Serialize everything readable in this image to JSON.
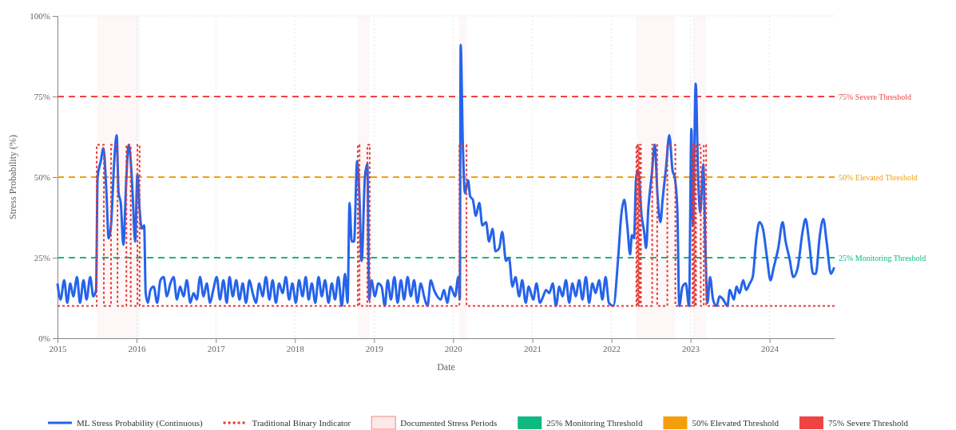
{
  "chart_data": {
    "type": "line",
    "xlabel": "Date",
    "ylabel": "Stress Probability (%)",
    "xlim": [
      "2015",
      "2024-10-27"
    ],
    "xticks": [
      "2015",
      "2016",
      "2017",
      "2018",
      "2019",
      "2020",
      "2021",
      "2022",
      "2023",
      "2024"
    ],
    "ylim": [
      0,
      100
    ],
    "yticks": [
      {
        "value": 0,
        "label": "0%"
      },
      {
        "value": 25,
        "label": "25%"
      },
      {
        "value": 50,
        "label": "50%"
      },
      {
        "value": 75,
        "label": "75%"
      },
      {
        "value": 100,
        "label": "100%"
      }
    ],
    "grid": true,
    "legend": "bottom",
    "series": [
      {
        "name": "ML Stress Probability (Continuous)",
        "color": "#2563eb",
        "line_style": "solid",
        "x": [
          "2015-01-01",
          "2015-01-15",
          "2015-02-01",
          "2015-02-15",
          "2015-03-01",
          "2015-03-15",
          "2015-04-01",
          "2015-04-15",
          "2015-05-01",
          "2015-05-15",
          "2015-06-01",
          "2015-06-15",
          "2015-06-28",
          "2015-07-05",
          "2015-07-20",
          "2015-08-01",
          "2015-08-15",
          "2015-08-25",
          "2015-09-05",
          "2015-09-20",
          "2015-10-01",
          "2015-10-10",
          "2015-10-20",
          "2015-11-01",
          "2015-11-15",
          "2015-11-25",
          "2015-12-05",
          "2015-12-15",
          "2015-12-25",
          "2016-01-05",
          "2016-01-15",
          "2016-01-25",
          "2016-02-05",
          "2016-02-12",
          "2016-02-22",
          "2016-03-05",
          "2016-03-20",
          "2016-04-05",
          "2016-04-20",
          "2016-05-05",
          "2016-05-20",
          "2016-06-05",
          "2016-06-20",
          "2016-07-05",
          "2016-07-20",
          "2016-08-05",
          "2016-08-20",
          "2016-09-05",
          "2016-09-20",
          "2016-10-05",
          "2016-10-20",
          "2016-11-05",
          "2016-11-20",
          "2016-12-05",
          "2016-12-20",
          "2017-01-05",
          "2017-01-20",
          "2017-02-05",
          "2017-02-20",
          "2017-03-05",
          "2017-03-20",
          "2017-04-05",
          "2017-04-20",
          "2017-05-05",
          "2017-05-20",
          "2017-06-05",
          "2017-06-20",
          "2017-07-05",
          "2017-07-20",
          "2017-08-05",
          "2017-08-20",
          "2017-09-05",
          "2017-09-20",
          "2017-10-05",
          "2017-10-20",
          "2017-11-05",
          "2017-11-20",
          "2017-12-05",
          "2017-12-20",
          "2018-01-05",
          "2018-01-20",
          "2018-02-05",
          "2018-02-20",
          "2018-03-05",
          "2018-03-20",
          "2018-04-05",
          "2018-04-20",
          "2018-05-05",
          "2018-05-20",
          "2018-06-05",
          "2018-06-20",
          "2018-07-05",
          "2018-07-20",
          "2018-08-05",
          "2018-08-20",
          "2018-09-01",
          "2018-09-10",
          "2018-09-20",
          "2018-10-01",
          "2018-10-15",
          "2018-10-25",
          "2018-11-05",
          "2018-11-20",
          "2018-12-01",
          "2018-12-10",
          "2018-12-20",
          "2019-01-05",
          "2019-01-20",
          "2019-02-05",
          "2019-02-20",
          "2019-03-05",
          "2019-03-20",
          "2019-04-05",
          "2019-04-20",
          "2019-05-05",
          "2019-05-20",
          "2019-06-05",
          "2019-06-20",
          "2019-07-05",
          "2019-07-20",
          "2019-08-05",
          "2019-08-20",
          "2019-09-05",
          "2019-09-20",
          "2019-10-05",
          "2019-10-20",
          "2019-11-05",
          "2019-11-20",
          "2019-12-05",
          "2019-12-20",
          "2020-01-10",
          "2020-01-25",
          "2020-02-01",
          "2020-02-05",
          "2020-02-15",
          "2020-02-25",
          "2020-03-10",
          "2020-03-20",
          "2020-04-01",
          "2020-04-15",
          "2020-05-01",
          "2020-05-15",
          "2020-06-01",
          "2020-06-15",
          "2020-07-01",
          "2020-07-15",
          "2020-08-01",
          "2020-08-15",
          "2020-09-01",
          "2020-09-15",
          "2020-10-01",
          "2020-10-15",
          "2020-11-01",
          "2020-11-15",
          "2020-12-01",
          "2020-12-15",
          "2021-01-05",
          "2021-01-20",
          "2021-02-05",
          "2021-02-20",
          "2021-03-05",
          "2021-03-20",
          "2021-04-05",
          "2021-04-20",
          "2021-05-05",
          "2021-05-20",
          "2021-06-05",
          "2021-06-20",
          "2021-07-05",
          "2021-07-20",
          "2021-08-05",
          "2021-08-20",
          "2021-09-05",
          "2021-09-20",
          "2021-10-05",
          "2021-10-20",
          "2021-11-05",
          "2021-11-20",
          "2021-12-05",
          "2021-12-20",
          "2022-01-10",
          "2022-02-01",
          "2022-02-15",
          "2022-03-01",
          "2022-03-15",
          "2022-03-28",
          "2022-04-05",
          "2022-04-15",
          "2022-04-25",
          "2022-05-05",
          "2022-05-20",
          "2022-06-01",
          "2022-06-10",
          "2022-06-20",
          "2022-07-05",
          "2022-07-20",
          "2022-08-01",
          "2022-08-15",
          "2022-08-25",
          "2022-09-10",
          "2022-09-25",
          "2022-10-10",
          "2022-10-20",
          "2022-11-01",
          "2022-11-10",
          "2022-11-25",
          "2022-12-10",
          "2022-12-25",
          "2023-01-05",
          "2023-01-12",
          "2023-01-25",
          "2023-02-05",
          "2023-02-15",
          "2023-03-01",
          "2023-03-10",
          "2023-03-20",
          "2023-04-01",
          "2023-04-15",
          "2023-05-01",
          "2023-05-15",
          "2023-06-01",
          "2023-06-20",
          "2023-07-01",
          "2023-07-20",
          "2023-08-01",
          "2023-08-15",
          "2023-09-01",
          "2023-09-15",
          "2023-10-01",
          "2023-10-15",
          "2023-11-01",
          "2023-11-15",
          "2023-12-01",
          "2023-12-20",
          "2024-01-05",
          "2024-01-20",
          "2024-02-10",
          "2024-03-01",
          "2024-03-15",
          "2024-04-01",
          "2024-04-20",
          "2024-05-10",
          "2024-06-01",
          "2024-06-15",
          "2024-07-01",
          "2024-07-20",
          "2024-08-01",
          "2024-08-20",
          "2024-09-05",
          "2024-09-20",
          "2024-10-10",
          "2024-10-25"
        ],
        "values": [
          17,
          12,
          18,
          11,
          17,
          13,
          19,
          11,
          18,
          12,
          19,
          13,
          15,
          50,
          55,
          59,
          45,
          31,
          35,
          55,
          63,
          45,
          42,
          29,
          50,
          60,
          55,
          43,
          30,
          51,
          40,
          34,
          35,
          14,
          11,
          15,
          16,
          11,
          18,
          19,
          13,
          17,
          19,
          12,
          16,
          13,
          18,
          11,
          14,
          12,
          19,
          13,
          17,
          11,
          15,
          19,
          12,
          18,
          11,
          19,
          13,
          18,
          12,
          17,
          11,
          18,
          14,
          11,
          17,
          13,
          19,
          12,
          18,
          11,
          17,
          14,
          19,
          12,
          17,
          11,
          18,
          13,
          19,
          12,
          17,
          11,
          19,
          13,
          18,
          11,
          17,
          12,
          19,
          10,
          20,
          11,
          42,
          30,
          30,
          55,
          45,
          24,
          50,
          54,
          12,
          18,
          13,
          17,
          16,
          10,
          18,
          12,
          19,
          11,
          18,
          12,
          19,
          13,
          18,
          11,
          17,
          13,
          10,
          18,
          15,
          13,
          12,
          15,
          11,
          16,
          13,
          19,
          12,
          91,
          60,
          45,
          49,
          44,
          43,
          38,
          42,
          35,
          36,
          30,
          34,
          27,
          28,
          33,
          24,
          25,
          16,
          19,
          13,
          18,
          11,
          16,
          12,
          17,
          11,
          13,
          15,
          14,
          17,
          10,
          16,
          13,
          18,
          11,
          17,
          13,
          18,
          12,
          19,
          11,
          17,
          14,
          18,
          12,
          19,
          11,
          10,
          25,
          38,
          43,
          35,
          26,
          32,
          31,
          50,
          52,
          38,
          33,
          28,
          40,
          50,
          60,
          45,
          36,
          43,
          53,
          63,
          52,
          50,
          40,
          10,
          16,
          17,
          10,
          65,
          35,
          79,
          50,
          39,
          54,
          30,
          11,
          19,
          12,
          10,
          13,
          12,
          10,
          15,
          12,
          16,
          14,
          18,
          15,
          17,
          19,
          31,
          36,
          34,
          25,
          18,
          22,
          28,
          36,
          30,
          25,
          19,
          22,
          33,
          37,
          30,
          20,
          20,
          32,
          37,
          30,
          20,
          22
        ]
      },
      {
        "name": "Traditional Binary Indicator",
        "type": "step",
        "color": "#e53935",
        "line_style": "dotted",
        "x": [
          "2015-01-01",
          "2015-07-01",
          "2015-08-03",
          "2015-09-05",
          "2015-10-05",
          "2015-11-15",
          "2015-12-05",
          "2016-01-05",
          "2016-01-15",
          "2018-10-18",
          "2018-10-26",
          "2018-12-01",
          "2018-12-12",
          "2020-01-30",
          "2020-03-03",
          "2022-04-26",
          "2022-04-30",
          "2022-05-03",
          "2022-05-07",
          "2022-05-10",
          "2022-05-17",
          "2022-07-08",
          "2022-07-31",
          "2022-09-16",
          "2022-10-23",
          "2023-01-10",
          "2023-01-14",
          "2023-01-18",
          "2023-01-22",
          "2023-01-26",
          "2023-02-17",
          "2023-03-03",
          "2023-03-14",
          "2024-10-27"
        ],
        "values": [
          10,
          60,
          10,
          60,
          10,
          60,
          10,
          60,
          10,
          60,
          10,
          60,
          10,
          60,
          10,
          60,
          10,
          60,
          10,
          60,
          10,
          60,
          10,
          60,
          10,
          60,
          10,
          60,
          10,
          60,
          10,
          60,
          10,
          10
        ]
      }
    ],
    "bands": [
      {
        "axis": "x",
        "from": "2015-07-01",
        "to": "2016-01-15",
        "label": "Documented Stress Periods",
        "color": "#fde8e8"
      },
      {
        "axis": "x",
        "from": "2018-10-18",
        "to": "2018-12-12",
        "color": "#fde8e8"
      },
      {
        "axis": "x",
        "from": "2020-01-30",
        "to": "2020-03-03",
        "color": "#fde8e8"
      },
      {
        "axis": "x",
        "from": "2022-04-26",
        "to": "2022-10-23",
        "color": "#fde8e8"
      },
      {
        "axis": "x",
        "from": "2023-01-10",
        "to": "2023-03-14",
        "color": "#fde8e8"
      }
    ],
    "ref_lines": [
      {
        "axis": "y",
        "value": 25,
        "label": "25% Monitoring Threshold",
        "color": "#10b981",
        "line_style": "dashed"
      },
      {
        "axis": "y",
        "value": 50,
        "label": "50% Elevated Threshold",
        "color": "#f59e0b",
        "line_style": "dashed"
      },
      {
        "axis": "y",
        "value": 75,
        "label": "75% Severe Threshold",
        "color": "#ef4444",
        "line_style": "dashed"
      }
    ]
  }
}
